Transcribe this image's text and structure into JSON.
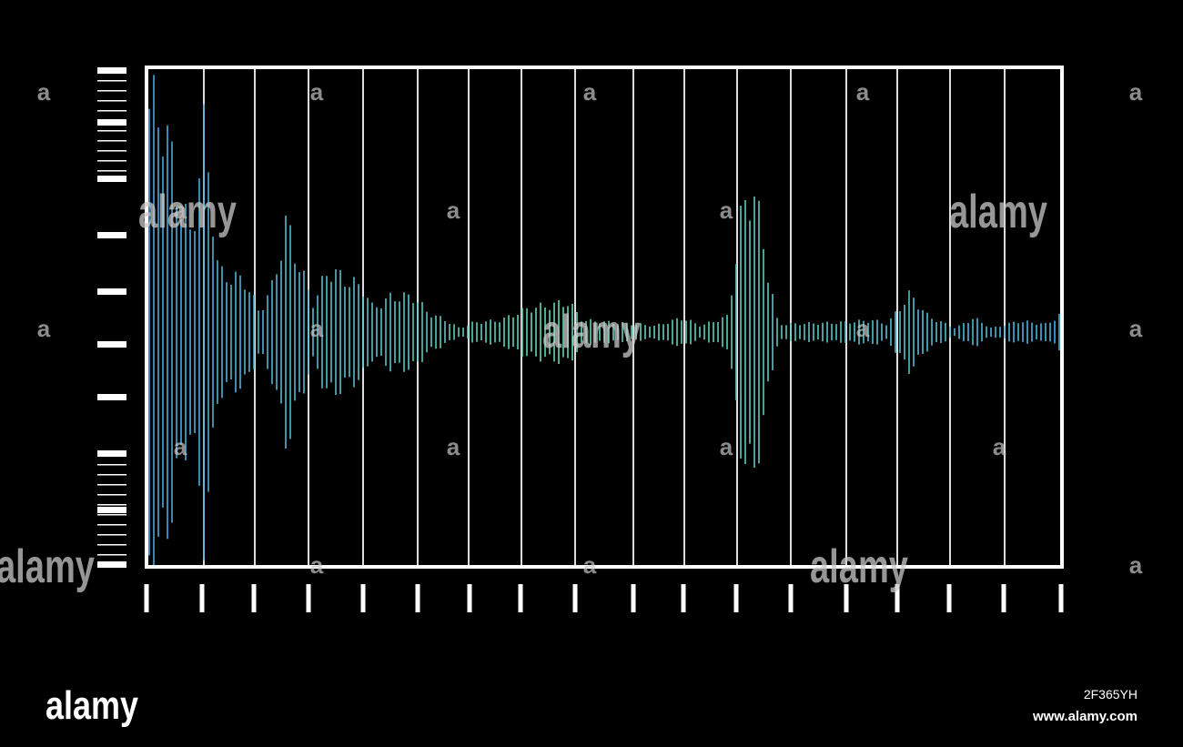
{
  "watermark": {
    "word": "alamy",
    "letter": "a"
  },
  "footer": {
    "brand": "alamy",
    "image_id": "2F365YH",
    "site": "www.alamy.com"
  }
}
